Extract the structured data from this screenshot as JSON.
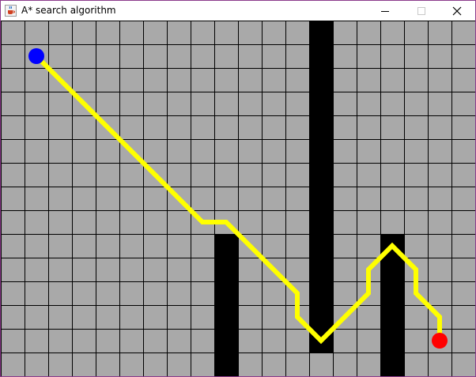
{
  "window": {
    "title": "A* search algorithm",
    "icon": "java-cup-icon"
  },
  "controls": {
    "minimize_icon": "minimize-icon",
    "maximize_icon": "maximize-icon",
    "close_icon": "close-icon"
  },
  "grid": {
    "cols": 20,
    "rows": 15,
    "cell_color": "#a9a9a9",
    "line_color": "#000000",
    "wall_color": "#000000",
    "path_color": "#ffff00",
    "start_color": "#0000ff",
    "goal_color": "#ff0000",
    "walls": [
      {
        "col": 13,
        "row_start": 0,
        "row_end": 13
      },
      {
        "col": 9,
        "row_start": 9,
        "row_end": 14
      },
      {
        "col": 16,
        "row_start": 9,
        "row_end": 14
      }
    ],
    "start": {
      "col": 1,
      "row": 1
    },
    "goal": {
      "col": 18,
      "row": 13
    },
    "path": [
      [
        1,
        1
      ],
      [
        2,
        2
      ],
      [
        3,
        3
      ],
      [
        4,
        4
      ],
      [
        5,
        5
      ],
      [
        6,
        6
      ],
      [
        7,
        7
      ],
      [
        8,
        8
      ],
      [
        9,
        8
      ],
      [
        10,
        9
      ],
      [
        11,
        10
      ],
      [
        12,
        11
      ],
      [
        12,
        12
      ],
      [
        13,
        13
      ],
      [
        14,
        12
      ],
      [
        15,
        11
      ],
      [
        15,
        10
      ],
      [
        16,
        9
      ],
      [
        17,
        10
      ],
      [
        17,
        11
      ],
      [
        18,
        12
      ],
      [
        18,
        13
      ]
    ]
  }
}
